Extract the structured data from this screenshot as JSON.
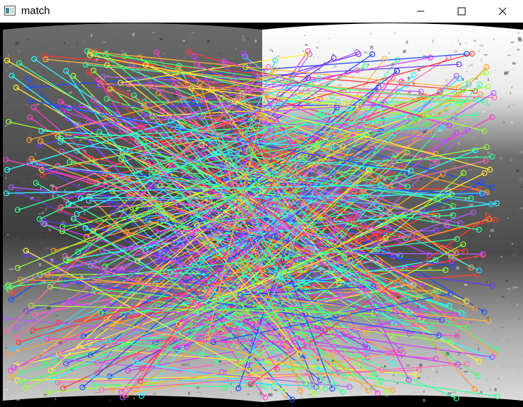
{
  "window": {
    "title": "match",
    "icon": "opencv-window-icon",
    "controls": [
      "minimize-icon",
      "maximize-icon",
      "close-icon"
    ]
  },
  "content": {
    "type": "image",
    "description_icon": "feature-match-image"
  }
}
